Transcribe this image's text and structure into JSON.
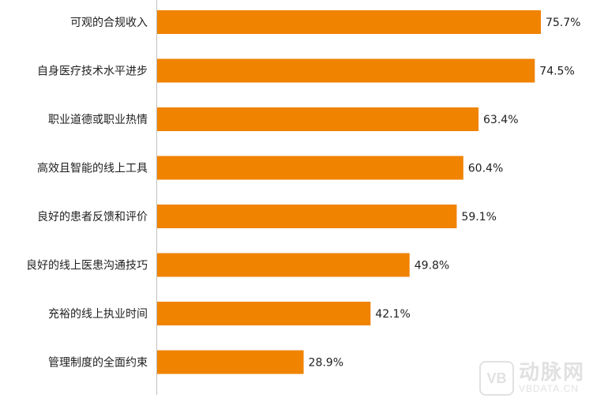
{
  "chart_data": {
    "type": "bar",
    "orientation": "horizontal",
    "categories": [
      "可观的合规收入",
      "自身医疗技术水平进步",
      "职业道德或职业热情",
      "高效且智能的线上工具",
      "良好的患者反馈和评价",
      "良好的线上医患沟通技巧",
      "充裕的线上执业时间",
      "管理制度的全面约束"
    ],
    "values": [
      75.7,
      74.5,
      63.4,
      60.4,
      59.1,
      49.8,
      42.1,
      28.9
    ],
    "value_labels": [
      "75.7%",
      "74.5%",
      "63.4%",
      "60.4%",
      "59.1%",
      "49.8%",
      "42.1%",
      "28.9%"
    ],
    "xlim": [
      0,
      100
    ],
    "grid": false,
    "bar_color": "#F08300"
  },
  "watermark": {
    "badge": "VB",
    "name": "动脉网",
    "url": "VBDATA.CN"
  }
}
